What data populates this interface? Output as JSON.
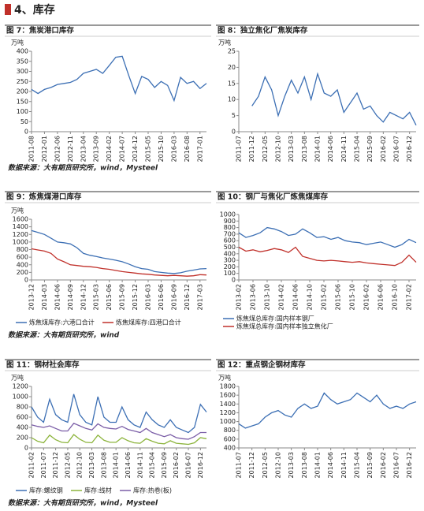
{
  "section_title": "4、库存",
  "sources": [
    "数据来源：大有期货研究所，wind，Mysteel",
    "数据来源：大有期货研究所，wind",
    "数据来源：大有期货研究所，wind，Mysteel"
  ],
  "chart_data": [
    {
      "type": "line",
      "title": "图 7：焦炭港口库存",
      "unit": "万吨",
      "categories": [
        "2011-08",
        null,
        "2012-01",
        null,
        "2012-06",
        null,
        "2012-11",
        null,
        "2013-04",
        null,
        "2013-09",
        null,
        "2014-02",
        null,
        "2014-07",
        null,
        "2014-12",
        null,
        "2015-05",
        null,
        "2015-10",
        null,
        "2016-03",
        null,
        "2016-08",
        null,
        "2017-01",
        null
      ],
      "series": [
        {
          "name": "焦炭港口库存",
          "color": "#3c6fb4",
          "values": [
            210,
            190,
            210,
            220,
            235,
            240,
            245,
            260,
            290,
            300,
            310,
            290,
            330,
            370,
            375,
            280,
            190,
            275,
            260,
            220,
            250,
            230,
            155,
            270,
            240,
            250,
            215,
            240
          ]
        }
      ],
      "ylim": [
        0,
        400
      ],
      "yticks": [
        0,
        50,
        100,
        150,
        200,
        250,
        300,
        350,
        400
      ],
      "grid": false,
      "legend": false
    },
    {
      "type": "line",
      "title": "图 8：独立焦化厂焦炭库存",
      "unit": "万吨",
      "categories": [
        "2011-07",
        null,
        "2011-12",
        null,
        "2012-05",
        null,
        "2012-10",
        null,
        "2013-03",
        null,
        "2013-08",
        null,
        "2014-01",
        null,
        "2014-06",
        null,
        "2014-11",
        null,
        "2015-04",
        null,
        "2015-09",
        null,
        "2016-02",
        null,
        "2016-07",
        null,
        "2016-12",
        null
      ],
      "series": [
        {
          "name": "独立焦化厂焦炭库存",
          "color": "#3c6fb4",
          "values": [
            null,
            null,
            8,
            11,
            17,
            13,
            5,
            11,
            16,
            12,
            17,
            10,
            18,
            12,
            11,
            13,
            6,
            9,
            12,
            7,
            8,
            5,
            3,
            6,
            5,
            4,
            6,
            2
          ]
        }
      ],
      "ylim": [
        0,
        25
      ],
      "yticks": [
        0,
        5,
        10,
        15,
        20,
        25
      ],
      "grid": false,
      "legend": false
    },
    {
      "type": "line",
      "title": "图 9：炼焦煤港口库存",
      "unit": "万吨",
      "categories": [
        "2013-12",
        null,
        "2014-03",
        null,
        "2014-06",
        null,
        "2014-09",
        null,
        "2014-12",
        null,
        "2015-03",
        null,
        "2015-06",
        null,
        "2015-09",
        null,
        "2015-12",
        null,
        "2016-03",
        null,
        "2016-06",
        null,
        "2016-09",
        null,
        "2016-12",
        null,
        "2017-03",
        null
      ],
      "series": [
        {
          "name": "炼焦煤库存:六港口合计",
          "color": "#3c6fb4",
          "values": [
            1300,
            1250,
            1200,
            1100,
            1000,
            980,
            950,
            850,
            700,
            650,
            620,
            580,
            550,
            520,
            480,
            420,
            350,
            300,
            280,
            220,
            200,
            180,
            170,
            190,
            230,
            260,
            290,
            300
          ]
        },
        {
          "name": "炼焦煤库存:四港口合计",
          "color": "#c0302a",
          "values": [
            820,
            790,
            760,
            700,
            550,
            480,
            400,
            380,
            360,
            350,
            330,
            300,
            280,
            250,
            220,
            200,
            180,
            160,
            150,
            130,
            120,
            110,
            120,
            110,
            100,
            110,
            140,
            130
          ]
        }
      ],
      "ylim": [
        0,
        1600
      ],
      "yticks": [
        0,
        200,
        400,
        600,
        800,
        1000,
        1200,
        1400,
        1600
      ],
      "grid": false,
      "legend": true
    },
    {
      "type": "line",
      "title": "图 10：钢厂与焦化厂炼焦煤库存",
      "categories": [
        "2013-02",
        null,
        "2013-06",
        null,
        "2013-10",
        null,
        "2014-02",
        null,
        "2014-06",
        null,
        "2014-10",
        null,
        "2015-02",
        null,
        "2015-06",
        null,
        "2015-10",
        null,
        "2016-02",
        null,
        "2016-06",
        null,
        "2016-10",
        null,
        "2017-02",
        null
      ],
      "series": [
        {
          "name": "炼焦煤总库存:国内样本钢厂",
          "color": "#3c6fb4",
          "values": [
            720,
            650,
            680,
            720,
            800,
            780,
            740,
            680,
            700,
            780,
            720,
            650,
            660,
            620,
            650,
            600,
            580,
            570,
            540,
            560,
            580,
            540,
            500,
            540,
            620,
            570
          ]
        },
        {
          "name": "炼焦煤总库存:国内样本独立焦化厂",
          "color": "#c0302a",
          "values": [
            500,
            440,
            460,
            430,
            450,
            480,
            460,
            420,
            500,
            360,
            330,
            300,
            290,
            300,
            290,
            280,
            270,
            280,
            260,
            250,
            240,
            230,
            220,
            270,
            380,
            270
          ]
        }
      ],
      "ylim": [
        0,
        1000
      ],
      "yticks": [
        0,
        100,
        200,
        300,
        400,
        500,
        600,
        700,
        800,
        900,
        1000
      ],
      "grid": false,
      "legend": true
    },
    {
      "type": "line",
      "title": "图 11：钢材社会库存",
      "unit": "万吨",
      "categories": [
        "2011-02",
        null,
        "2011-07",
        null,
        "2011-12",
        null,
        "2012-05",
        null,
        "2012-10",
        null,
        "2013-03",
        null,
        "2013-08",
        null,
        "2014-01",
        null,
        "2014-06",
        null,
        "2014-11",
        null,
        "2015-04",
        null,
        "2015-09",
        null,
        "2016-02",
        null,
        "2016-07",
        null,
        "2016-12",
        null
      ],
      "series": [
        {
          "name": "库存:螺纹钢",
          "color": "#3c6fb4",
          "values": [
            800,
            600,
            500,
            950,
            650,
            550,
            500,
            1050,
            650,
            500,
            450,
            1000,
            600,
            500,
            500,
            800,
            550,
            450,
            400,
            700,
            550,
            450,
            400,
            550,
            400,
            350,
            300,
            400,
            850,
            700
          ]
        },
        {
          "name": "库存:线材",
          "color": "#8cb43c",
          "values": [
            200,
            130,
            100,
            250,
            160,
            110,
            100,
            260,
            170,
            110,
            100,
            250,
            150,
            110,
            110,
            200,
            140,
            100,
            90,
            180,
            130,
            90,
            80,
            140,
            90,
            80,
            70,
            100,
            200,
            180
          ]
        },
        {
          "name": "库存:热卷(板)",
          "color": "#7b5ea7",
          "values": [
            450,
            420,
            400,
            430,
            380,
            330,
            330,
            480,
            430,
            380,
            350,
            470,
            400,
            380,
            370,
            420,
            360,
            330,
            300,
            380,
            300,
            260,
            220,
            260,
            200,
            180,
            170,
            220,
            300,
            300
          ]
        }
      ],
      "ylim": [
        0,
        1200
      ],
      "yticks": [
        0,
        200,
        400,
        600,
        800,
        1000,
        1200
      ],
      "grid": false,
      "legend": true
    },
    {
      "type": "line",
      "title": "图 12：重点钢企钢材库存",
      "unit": "万吨",
      "categories": [
        "2011-07",
        null,
        "2011-12",
        null,
        "2012-05",
        null,
        "2012-10",
        null,
        "2013-03",
        null,
        "2013-08",
        null,
        "2014-01",
        null,
        "2014-06",
        null,
        "2014-11",
        null,
        "2015-04",
        null,
        "2015-09",
        null,
        "2016-02",
        null,
        "2016-07",
        null,
        "2016-12",
        null
      ],
      "series": [
        {
          "name": "重点钢企钢材库存",
          "color": "#3c6fb4",
          "values": [
            950,
            850,
            900,
            950,
            1100,
            1200,
            1250,
            1150,
            1100,
            1300,
            1400,
            1300,
            1350,
            1650,
            1500,
            1400,
            1450,
            1500,
            1650,
            1550,
            1450,
            1600,
            1400,
            1300,
            1350,
            1300,
            1400,
            1450
          ]
        }
      ],
      "ylim": [
        400,
        1800
      ],
      "yticks": [
        400,
        600,
        800,
        1000,
        1200,
        1400,
        1600,
        1800
      ],
      "grid": false,
      "legend": false
    }
  ]
}
